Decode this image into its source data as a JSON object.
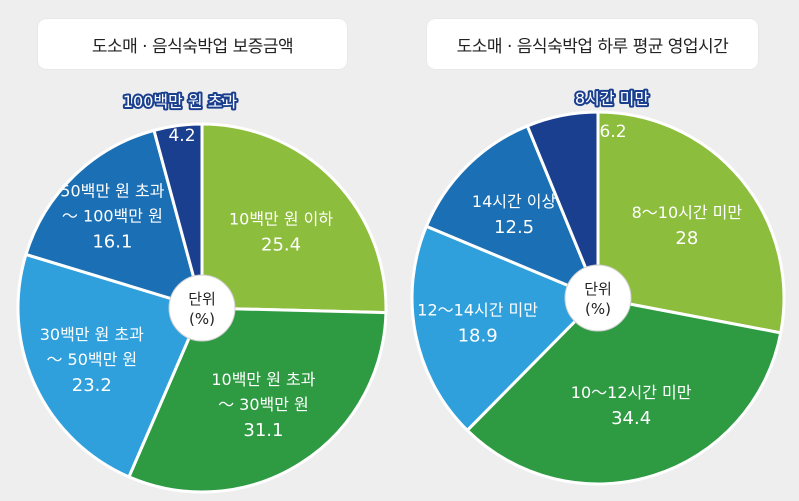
{
  "chart_data": [
    {
      "type": "pie",
      "title": "도소매 · 음식숙박업 보증금액",
      "center_label": [
        "단위",
        "(%)"
      ],
      "slices": [
        {
          "label": [
            "10백만 원 이하"
          ],
          "value": 25.4,
          "value_text": "25.4",
          "color": "#8dbd3c"
        },
        {
          "label": [
            "10백만 원 초과",
            "～ 30백만 원"
          ],
          "value": 31.1,
          "value_text": "31.1",
          "color": "#2e9b43"
        },
        {
          "label": [
            "30백만 원 초과",
            "～ 50백만 원"
          ],
          "value": 23.2,
          "value_text": "23.2",
          "color": "#2fa0dc"
        },
        {
          "label": [
            "50백만 원 초과",
            "～ 100백만 원"
          ],
          "value": 16.1,
          "value_text": "16.1",
          "color": "#1b6fb4"
        },
        {
          "label": [
            "100백만 원 초과"
          ],
          "value": 4.2,
          "value_text": "4.2",
          "color": "#1b3f8f"
        }
      ]
    },
    {
      "type": "pie",
      "title": "도소매 · 음식숙박업 하루 평균 영업시간",
      "center_label": [
        "단위",
        "(%)"
      ],
      "slices": [
        {
          "label": [
            "8～10시간 미만"
          ],
          "value": 28,
          "value_text": "28",
          "color": "#8dbd3c"
        },
        {
          "label": [
            "10～12시간 미만"
          ],
          "value": 34.4,
          "value_text": "34.4",
          "color": "#2e9b43"
        },
        {
          "label": [
            "12～14시간 미만"
          ],
          "value": 18.9,
          "value_text": "18.9",
          "color": "#2fa0dc"
        },
        {
          "label": [
            "14시간 이상"
          ],
          "value": 12.5,
          "value_text": "12.5",
          "color": "#1b6fb4"
        },
        {
          "label": [
            "8시간 미만"
          ],
          "value": 6.2,
          "value_text": "6.2",
          "color": "#1b3f8f"
        }
      ]
    }
  ]
}
